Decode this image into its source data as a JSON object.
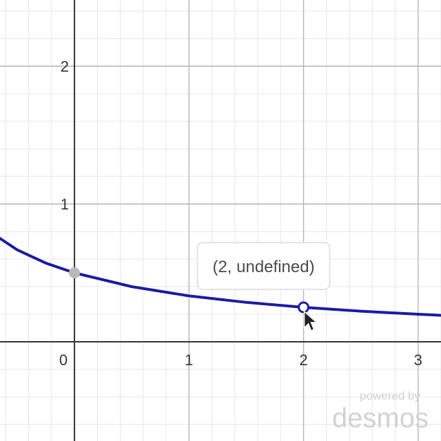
{
  "chart_data": {
    "type": "line",
    "xlim": [
      -0.65,
      3.2
    ],
    "ylim": [
      -0.72,
      2.48
    ],
    "grid": true,
    "minor_gridlines_per_unit": 5,
    "x_ticks": [
      "0",
      "1",
      "2",
      "3"
    ],
    "y_ticks": [
      "1",
      "2"
    ],
    "curve_color": "#1b1aa3",
    "series": [
      {
        "points": [
          {
            "x": -0.65,
            "y": 0.75
          },
          {
            "x": -0.5,
            "y": 0.667
          },
          {
            "x": -0.25,
            "y": 0.571
          },
          {
            "x": 0,
            "y": 0.5
          },
          {
            "x": 0.5,
            "y": 0.4
          },
          {
            "x": 1,
            "y": 0.333
          },
          {
            "x": 1.5,
            "y": 0.286
          },
          {
            "x": 2,
            "y": 0.25
          },
          {
            "x": 2.5,
            "y": 0.222
          },
          {
            "x": 3,
            "y": 0.2
          },
          {
            "x": 3.2,
            "y": 0.192
          }
        ]
      }
    ],
    "markers": [
      {
        "x": 0,
        "y": 0.5,
        "style": "filled",
        "color": "#b9b9b9"
      },
      {
        "x": 2,
        "y": 0.25,
        "style": "hollow",
        "color": "#1b1aa3"
      }
    ],
    "tooltip": {
      "text": "(2, undefined)",
      "x": 2,
      "y": 0.25
    }
  },
  "watermark": {
    "line1": "powered by",
    "line2": "desmos"
  },
  "icons": {
    "cursor": "mouse-pointer-icon"
  }
}
